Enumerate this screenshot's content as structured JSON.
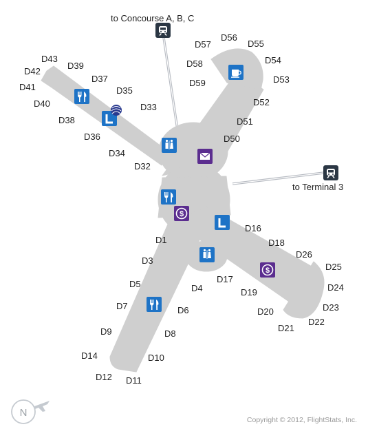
{
  "colors": {
    "terminal": "#cfcfcf",
    "service_blue": "#1e73c6",
    "service_purple": "#5b2d8f",
    "train_dark": "#2b3744",
    "train_line": "#b8bcc3",
    "compass": "#c5cad0"
  },
  "connectors": {
    "concourses": "to Concourse A, B, C",
    "terminal3": "to Terminal 3"
  },
  "gates": {
    "D1": "D1",
    "D3": "D3",
    "D4": "D4",
    "D5": "D5",
    "D6": "D6",
    "D7": "D7",
    "D8": "D8",
    "D9": "D9",
    "D10": "D10",
    "D11": "D11",
    "D12": "D12",
    "D14": "D14",
    "D16": "D16",
    "D17": "D17",
    "D18": "D18",
    "D19": "D19",
    "D20": "D20",
    "D21": "D21",
    "D22": "D22",
    "D23": "D23",
    "D24": "D24",
    "D25": "D25",
    "D26": "D26",
    "D32": "D32",
    "D33": "D33",
    "D34": "D34",
    "D35": "D35",
    "D36": "D36",
    "D37": "D37",
    "D38": "D38",
    "D39": "D39",
    "D40": "D40",
    "D41": "D41",
    "D42": "D42",
    "D43": "D43",
    "D50": "D50",
    "D51": "D51",
    "D52": "D52",
    "D53": "D53",
    "D54": "D54",
    "D55": "D55",
    "D56": "D56",
    "D57": "D57",
    "D58": "D58",
    "D59": "D59"
  },
  "icons": [
    "train-icon",
    "restaurant-icon",
    "lounge-icon",
    "airline-logo-icon",
    "restroom-icon",
    "mail-icon",
    "currency-exchange-icon",
    "coffee-icon"
  ],
  "compass": {
    "label": "N"
  },
  "copyright": "Copyright © 2012, FlightStats, Inc."
}
